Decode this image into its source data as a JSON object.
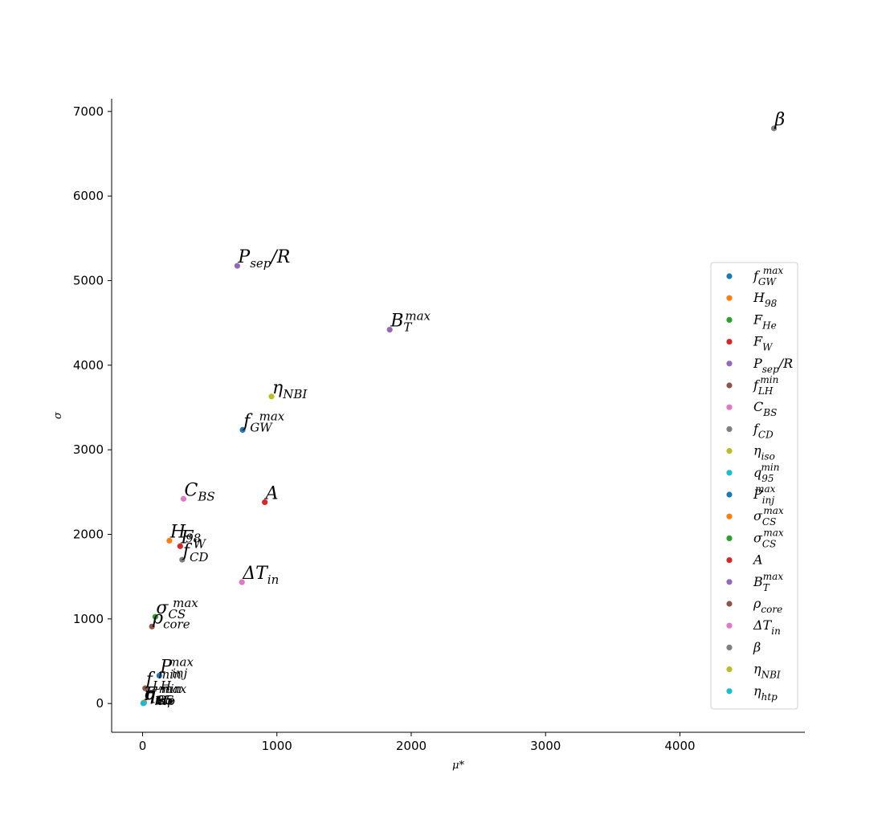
{
  "chart_data": {
    "type": "scatter",
    "title": "",
    "xlabel": "μ*",
    "ylabel": "σ",
    "xlim": [
      -230,
      4930
    ],
    "ylim": [
      -340,
      7150
    ],
    "xticks": [
      0,
      1000,
      2000,
      3000,
      4000
    ],
    "yticks": [
      0,
      1000,
      2000,
      3000,
      4000,
      5000,
      6000,
      7000
    ],
    "grid": false,
    "legend_position": "right",
    "series": [
      {
        "name": "f_GW^max",
        "color": "#1f77b4",
        "x": 745,
        "y": 3235,
        "label": [
          [
            "f",
            "n"
          ],
          [
            "GW",
            "sub"
          ],
          [
            "max",
            "sup"
          ]
        ]
      },
      {
        "name": "H_98",
        "color": "#ff7f0e",
        "x": 200,
        "y": 1925,
        "label": [
          [
            "H",
            "n"
          ],
          [
            "98",
            "sub"
          ]
        ]
      },
      {
        "name": "F_He",
        "color": "#2ca02c",
        "x": 10,
        "y": 8,
        "label": [
          [
            "F",
            "n"
          ],
          [
            "He",
            "sub"
          ]
        ]
      },
      {
        "name": "F_W",
        "color": "#d62728",
        "x": 280,
        "y": 1860,
        "label": [
          [
            "F",
            "n"
          ],
          [
            "W",
            "sub"
          ]
        ]
      },
      {
        "name": "P_sep/R",
        "color": "#9467bd",
        "x": 705,
        "y": 5175,
        "label": [
          [
            "P",
            "n"
          ],
          [
            "sep",
            "sub"
          ],
          [
            "/R",
            "n"
          ]
        ]
      },
      {
        "name": "f_LH^min",
        "color": "#8c564b",
        "x": 20,
        "y": 180,
        "label": [
          [
            "f",
            "n"
          ],
          [
            "LH",
            "sub"
          ],
          [
            "min",
            "sup"
          ]
        ]
      },
      {
        "name": "C_BS",
        "color": "#e377c2",
        "x": 305,
        "y": 2420,
        "label": [
          [
            "C",
            "n"
          ],
          [
            "BS",
            "sub"
          ]
        ]
      },
      {
        "name": "f_CD",
        "color": "#7f7f7f",
        "x": 295,
        "y": 1700,
        "label": [
          [
            "f",
            "n"
          ],
          [
            "CD",
            "sub"
          ]
        ]
      },
      {
        "name": "η_iso",
        "color": "#bcbd22",
        "x": 8,
        "y": 5,
        "label": [
          [
            "η",
            "n"
          ],
          [
            "iso",
            "sub"
          ]
        ]
      },
      {
        "name": "q_95^min",
        "color": "#17becf",
        "x": 12,
        "y": 12,
        "label": [
          [
            "q",
            "n"
          ],
          [
            "95",
            "sub"
          ],
          [
            "min",
            "sup"
          ]
        ]
      },
      {
        "name": "P_inj^max",
        "color": "#1f77b4",
        "x": 125,
        "y": 330,
        "label": [
          [
            "P",
            "n"
          ],
          [
            "inj",
            "sub"
          ],
          [
            "max",
            "sup"
          ]
        ]
      },
      {
        "name": "σ_CS^max",
        "color": "#ff7f0e",
        "x": 8,
        "y": 10,
        "label": [
          [
            "σ",
            "n"
          ],
          [
            "CS",
            "sub"
          ],
          [
            "max",
            "sup"
          ]
        ]
      },
      {
        "name": "σ_CS^max",
        "color": "#2ca02c",
        "x": 95,
        "y": 1025,
        "label": [
          [
            "σ",
            "n"
          ],
          [
            "CS",
            "sub"
          ],
          [
            "max",
            "sup"
          ]
        ]
      },
      {
        "name": "A",
        "color": "#d62728",
        "x": 910,
        "y": 2380,
        "label": [
          [
            "A",
            "n"
          ]
        ]
      },
      {
        "name": "B_T^max",
        "color": "#9467bd",
        "x": 1840,
        "y": 4420,
        "label": [
          [
            "B",
            "n"
          ],
          [
            "T",
            "sub"
          ],
          [
            "max",
            "sup"
          ]
        ]
      },
      {
        "name": "ρ_core",
        "color": "#8c564b",
        "x": 70,
        "y": 910,
        "label": [
          [
            "ρ",
            "n"
          ],
          [
            "core",
            "sub"
          ]
        ]
      },
      {
        "name": "ΔT_in",
        "color": "#e377c2",
        "x": 740,
        "y": 1435,
        "label": [
          [
            "ΔT",
            "n"
          ],
          [
            "in",
            "sub"
          ]
        ]
      },
      {
        "name": "β",
        "color": "#7f7f7f",
        "x": 4700,
        "y": 6800,
        "label": [
          [
            "β",
            "n"
          ]
        ]
      },
      {
        "name": "η_NBI",
        "color": "#bcbd22",
        "x": 960,
        "y": 3630,
        "label": [
          [
            "η",
            "n"
          ],
          [
            "NBI",
            "sub"
          ]
        ]
      },
      {
        "name": "η_htp",
        "color": "#17becf",
        "x": 5,
        "y": 3,
        "label": [
          [
            "η",
            "n"
          ],
          [
            "htp",
            "sub"
          ]
        ]
      }
    ]
  }
}
